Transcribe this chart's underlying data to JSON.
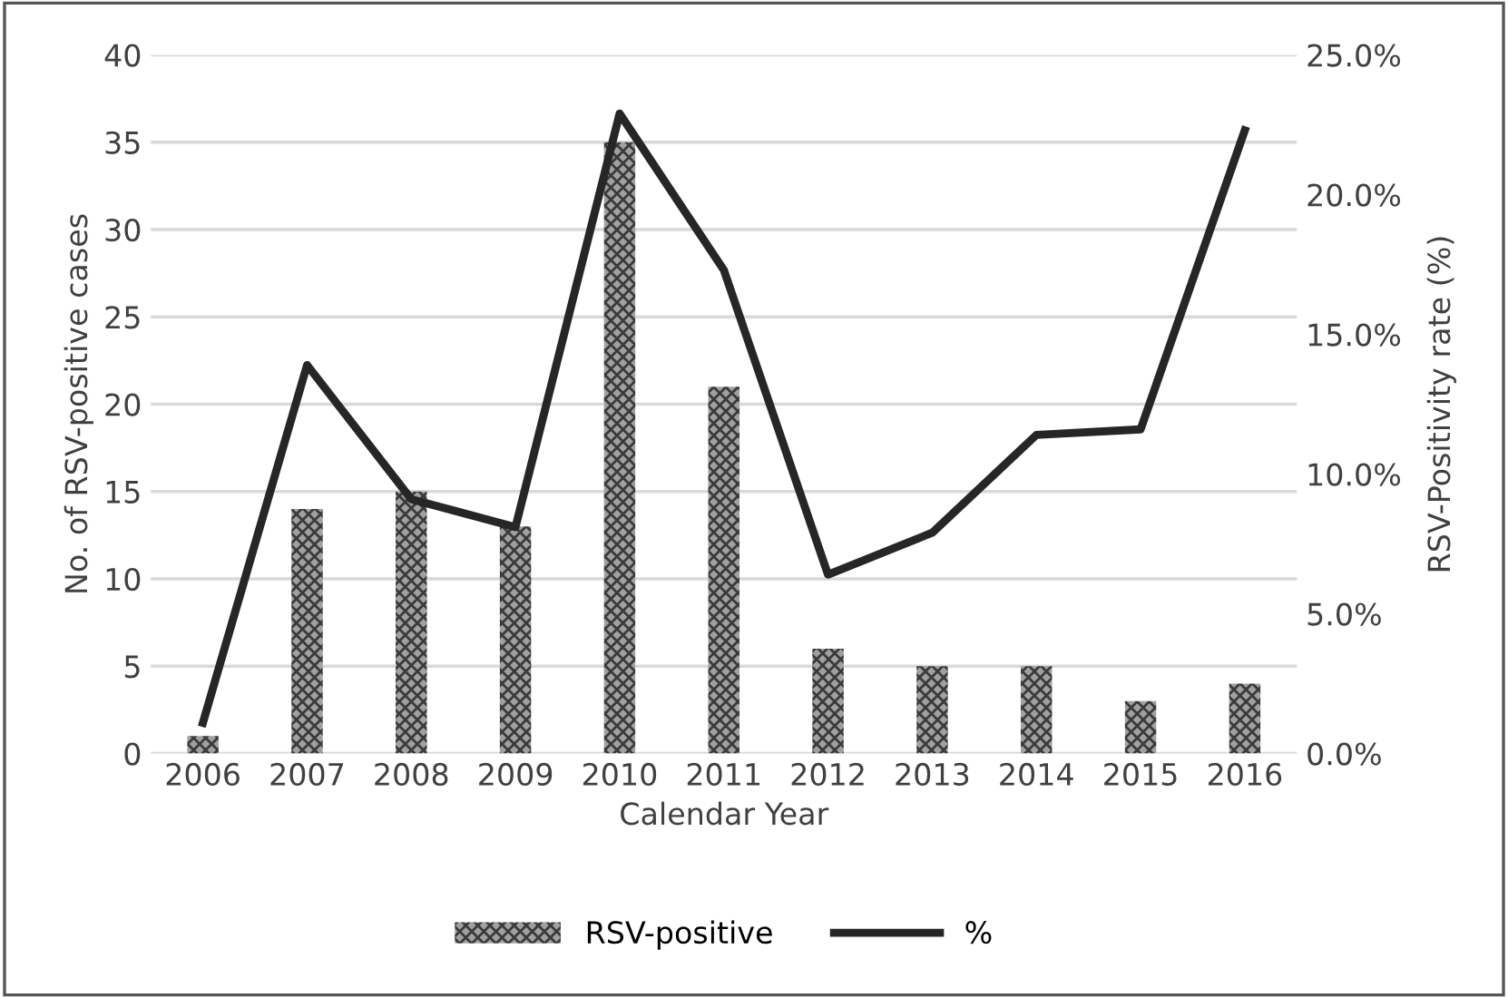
{
  "chart_data": {
    "type": "bar",
    "xlabel": "Calendar Year",
    "ylabel": "No. of RSV-positive cases",
    "y2label": "RSV-Positivity rate (%)",
    "categories": [
      "2006",
      "2007",
      "2008",
      "2009",
      "2010",
      "2011",
      "2012",
      "2013",
      "2014",
      "2015",
      "2016"
    ],
    "series": [
      {
        "name": "RSV-positive",
        "color": "#a0a0a0",
        "values": [
          1,
          14,
          15,
          13,
          35,
          21,
          6,
          5,
          5,
          3,
          4
        ]
      },
      {
        "name": "%",
        "type": "line",
        "axis": "y2",
        "color": "#262626",
        "values": [
          1.1,
          13.9,
          9.1,
          8.1,
          22.9,
          17.3,
          6.4,
          7.9,
          11.4,
          11.6,
          22.3
        ]
      }
    ],
    "ylim": [
      0,
      40
    ],
    "yticks": [
      0,
      5,
      10,
      15,
      20,
      25,
      30,
      35,
      40
    ],
    "y2lim": [
      0,
      25
    ],
    "y2ticks": [
      {
        "value": 0,
        "label": "0.0%"
      },
      {
        "value": 5,
        "label": "5.0%"
      },
      {
        "value": 10,
        "label": "10.0%"
      },
      {
        "value": 15,
        "label": "15.0%"
      },
      {
        "value": 20,
        "label": "20.0%"
      },
      {
        "value": 25,
        "label": "25.0%"
      }
    ],
    "grid": "y",
    "legend": "bottom",
    "marker": "none",
    "line_style": "solid"
  }
}
